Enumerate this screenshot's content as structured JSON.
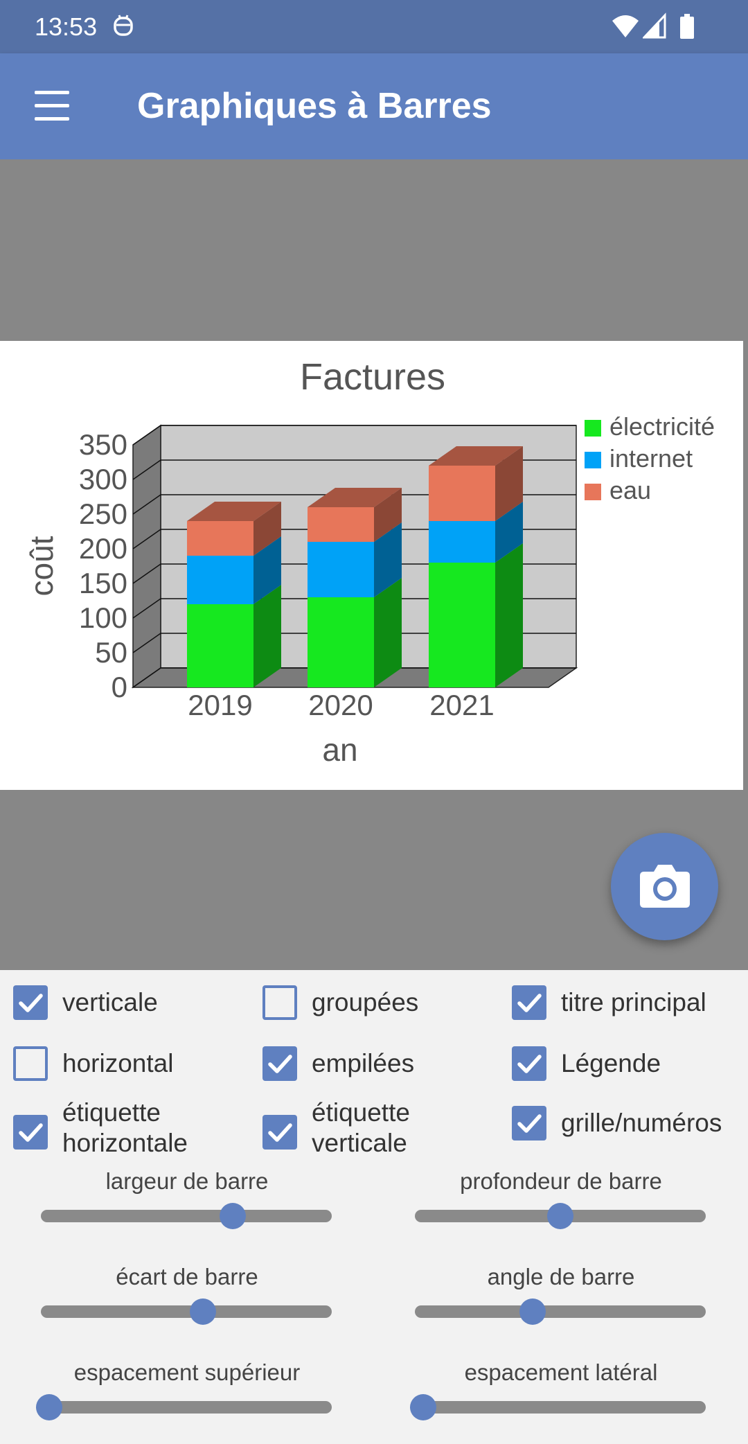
{
  "status_bar": {
    "time": "13:53"
  },
  "app_bar": {
    "title": "Graphiques à Barres"
  },
  "chart_data": {
    "type": "bar",
    "stacked": true,
    "title": "Factures",
    "xlabel": "an",
    "ylabel": "coût",
    "categories": [
      "2019",
      "2020",
      "2021"
    ],
    "series": [
      {
        "name": "électricité",
        "values": [
          120,
          130,
          180
        ],
        "color": "#16e81f"
      },
      {
        "name": "internet",
        "values": [
          70,
          80,
          60
        ],
        "color": "#00a2f7"
      },
      {
        "name": "eau",
        "values": [
          50,
          50,
          80
        ],
        "color": "#e7765a"
      }
    ],
    "ylim": [
      0,
      350
    ],
    "yticks": [
      "0",
      "50",
      "100",
      "150",
      "200",
      "250",
      "300",
      "350"
    ],
    "grid": true,
    "legend_position": "top-right"
  },
  "options": {
    "checkboxes": [
      {
        "label": "verticale",
        "checked": true
      },
      {
        "label": "groupées",
        "checked": false
      },
      {
        "label": "titre principal",
        "checked": true
      },
      {
        "label": "horizontal",
        "checked": false
      },
      {
        "label": "empilées",
        "checked": true
      },
      {
        "label": "Légende",
        "checked": true
      },
      {
        "label": "étiquette horizontale",
        "line1": "étiquette",
        "line2": "horizontale",
        "checked": true
      },
      {
        "label": "étiquette verticale",
        "line1": "étiquette",
        "line2": "verticale",
        "checked": true
      },
      {
        "label": "grille/numéros",
        "checked": true
      }
    ],
    "sliders": [
      {
        "label": "largeur de barre",
        "value": 0.67
      },
      {
        "label": "profondeur de barre",
        "value": 0.5
      },
      {
        "label": "écart de barre",
        "value": 0.56
      },
      {
        "label": "angle de barre",
        "value": 0.4
      },
      {
        "label": "espacement supérieur",
        "value": 0.0
      },
      {
        "label": "espacement latéral",
        "value": 0.0
      }
    ]
  }
}
